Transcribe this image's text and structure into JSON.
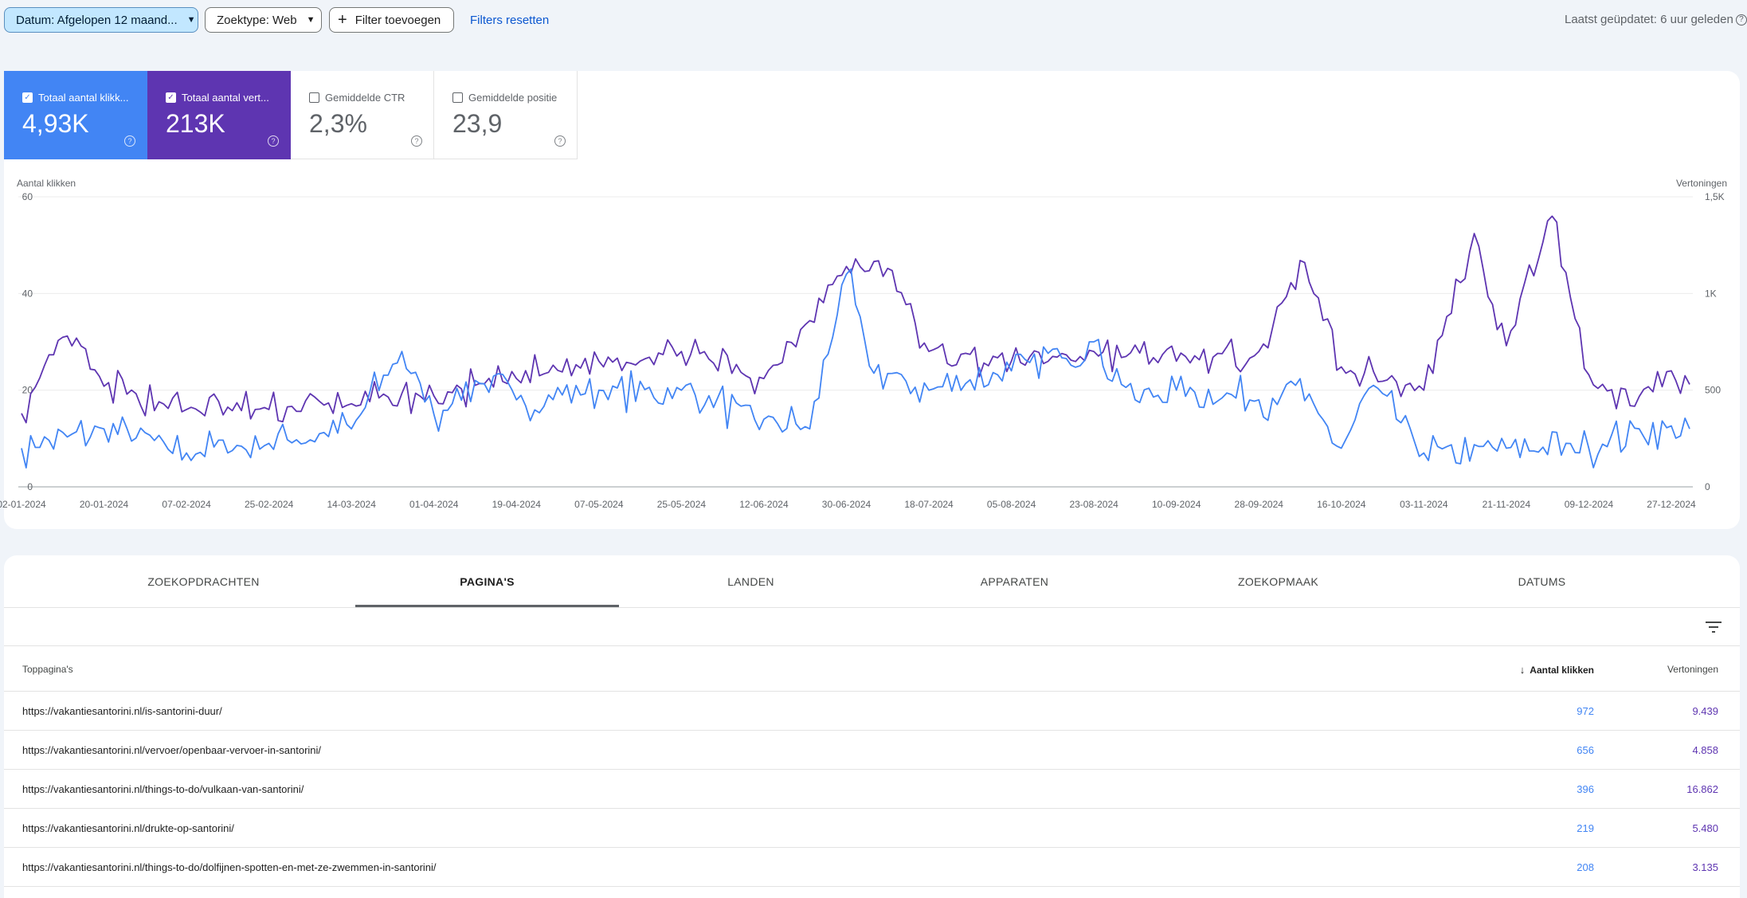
{
  "filters": {
    "date_chip": "Datum: Afgelopen 12 maand...",
    "type_chip": "Zoektype: Web",
    "add_filter": "Filter toevoegen",
    "reset": "Filters resetten",
    "last_updated": "Laatst geüpdatet: 6 uur geleden"
  },
  "metrics": [
    {
      "label": "Totaal aantal klikk...",
      "value": "4,93K",
      "selected": true,
      "color": "#4285f4"
    },
    {
      "label": "Totaal aantal vert...",
      "value": "213K",
      "selected": true,
      "color": "#5e35b1"
    },
    {
      "label": "Gemiddelde CTR",
      "value": "2,3%",
      "selected": false
    },
    {
      "label": "Gemiddelde positie",
      "value": "23,9",
      "selected": false
    }
  ],
  "chart_data": {
    "type": "line",
    "ylabel_left": "Aantal klikken",
    "ylabel_right": "Vertoningen",
    "ylim_left": [
      0,
      60
    ],
    "ylim_right": [
      0,
      1500
    ],
    "yticks_left": [
      "0",
      "20",
      "40",
      "60"
    ],
    "yticks_right": [
      "0",
      "500",
      "1K",
      "1,5K"
    ],
    "x_ticks": [
      "02-01-2024",
      "20-01-2024",
      "07-02-2024",
      "25-02-2024",
      "14-03-2024",
      "01-04-2024",
      "19-04-2024",
      "07-05-2024",
      "25-05-2024",
      "12-06-2024",
      "30-06-2024",
      "18-07-2024",
      "05-08-2024",
      "23-08-2024",
      "10-09-2024",
      "28-09-2024",
      "16-10-2024",
      "03-11-2024",
      "21-11-2024",
      "09-12-2024",
      "27-12-2024"
    ],
    "x_range": [
      "02-01-2024",
      "31-12-2024"
    ],
    "grid": true,
    "series": [
      {
        "axis": "left",
        "color": "#4285f4",
        "keypoints": [
          [
            "02-01-2024",
            8
          ],
          [
            "20-01-2024",
            12
          ],
          [
            "07-02-2024",
            7
          ],
          [
            "25-02-2024",
            9
          ],
          [
            "14-03-2024",
            12
          ],
          [
            "25-03-2024",
            28
          ],
          [
            "01-04-2024",
            15
          ],
          [
            "10-04-2024",
            22
          ],
          [
            "19-04-2024",
            18
          ],
          [
            "07-05-2024",
            20
          ],
          [
            "25-05-2024",
            20
          ],
          [
            "12-06-2024",
            14
          ],
          [
            "22-06-2024",
            12
          ],
          [
            "30-06-2024",
            44
          ],
          [
            "05-07-2024",
            25
          ],
          [
            "18-07-2024",
            20
          ],
          [
            "05-08-2024",
            24
          ],
          [
            "23-08-2024",
            30
          ],
          [
            "01-09-2024",
            18
          ],
          [
            "10-09-2024",
            20
          ],
          [
            "28-09-2024",
            18
          ],
          [
            "06-10-2024",
            21
          ],
          [
            "16-10-2024",
            8
          ],
          [
            "23-10-2024",
            21
          ],
          [
            "03-11-2024",
            7
          ],
          [
            "21-11-2024",
            8
          ],
          [
            "09-12-2024",
            8
          ],
          [
            "20-12-2024",
            12
          ],
          [
            "31-12-2024",
            12
          ]
        ]
      },
      {
        "axis": "right",
        "color": "#5e35b1",
        "keypoints": [
          [
            "02-01-2024",
            380
          ],
          [
            "12-01-2024",
            780
          ],
          [
            "20-01-2024",
            520
          ],
          [
            "07-02-2024",
            400
          ],
          [
            "25-02-2024",
            400
          ],
          [
            "14-03-2024",
            430
          ],
          [
            "01-04-2024",
            470
          ],
          [
            "19-04-2024",
            560
          ],
          [
            "07-05-2024",
            650
          ],
          [
            "25-05-2024",
            700
          ],
          [
            "12-06-2024",
            560
          ],
          [
            "30-06-2024",
            1140
          ],
          [
            "09-07-2024",
            1130
          ],
          [
            "18-07-2024",
            700
          ],
          [
            "05-08-2024",
            650
          ],
          [
            "23-08-2024",
            700
          ],
          [
            "10-09-2024",
            650
          ],
          [
            "28-09-2024",
            700
          ],
          [
            "08-10-2024",
            1160
          ],
          [
            "16-10-2024",
            620
          ],
          [
            "03-11-2024",
            500
          ],
          [
            "14-11-2024",
            1310
          ],
          [
            "21-11-2024",
            730
          ],
          [
            "01-12-2024",
            1400
          ],
          [
            "09-12-2024",
            580
          ],
          [
            "18-12-2024",
            420
          ],
          [
            "27-12-2024",
            600
          ],
          [
            "31-12-2024",
            530
          ]
        ]
      }
    ]
  },
  "tabs": [
    "ZOEKOPDRACHTEN",
    "PAGINA'S",
    "LANDEN",
    "APPARATEN",
    "ZOEKOPMAAK",
    "DATUMS"
  ],
  "selected_tab": "PAGINA'S",
  "table": {
    "headers": {
      "page": "Toppagina's",
      "clicks": "Aantal klikken",
      "impressions": "Vertoningen"
    },
    "rows": [
      {
        "url": "https://vakantiesantorini.nl/is-santorini-duur/",
        "clicks": "972",
        "impressions": "9.439"
      },
      {
        "url": "https://vakantiesantorini.nl/vervoer/openbaar-vervoer-in-santorini/",
        "clicks": "656",
        "impressions": "4.858"
      },
      {
        "url": "https://vakantiesantorini.nl/things-to-do/vulkaan-van-santorini/",
        "clicks": "396",
        "impressions": "16.862"
      },
      {
        "url": "https://vakantiesantorini.nl/drukte-op-santorini/",
        "clicks": "219",
        "impressions": "5.480"
      },
      {
        "url": "https://vakantiesantorini.nl/things-to-do/dolfijnen-spotten-en-met-ze-zwemmen-in-santorini/",
        "clicks": "208",
        "impressions": "3.135"
      }
    ]
  }
}
